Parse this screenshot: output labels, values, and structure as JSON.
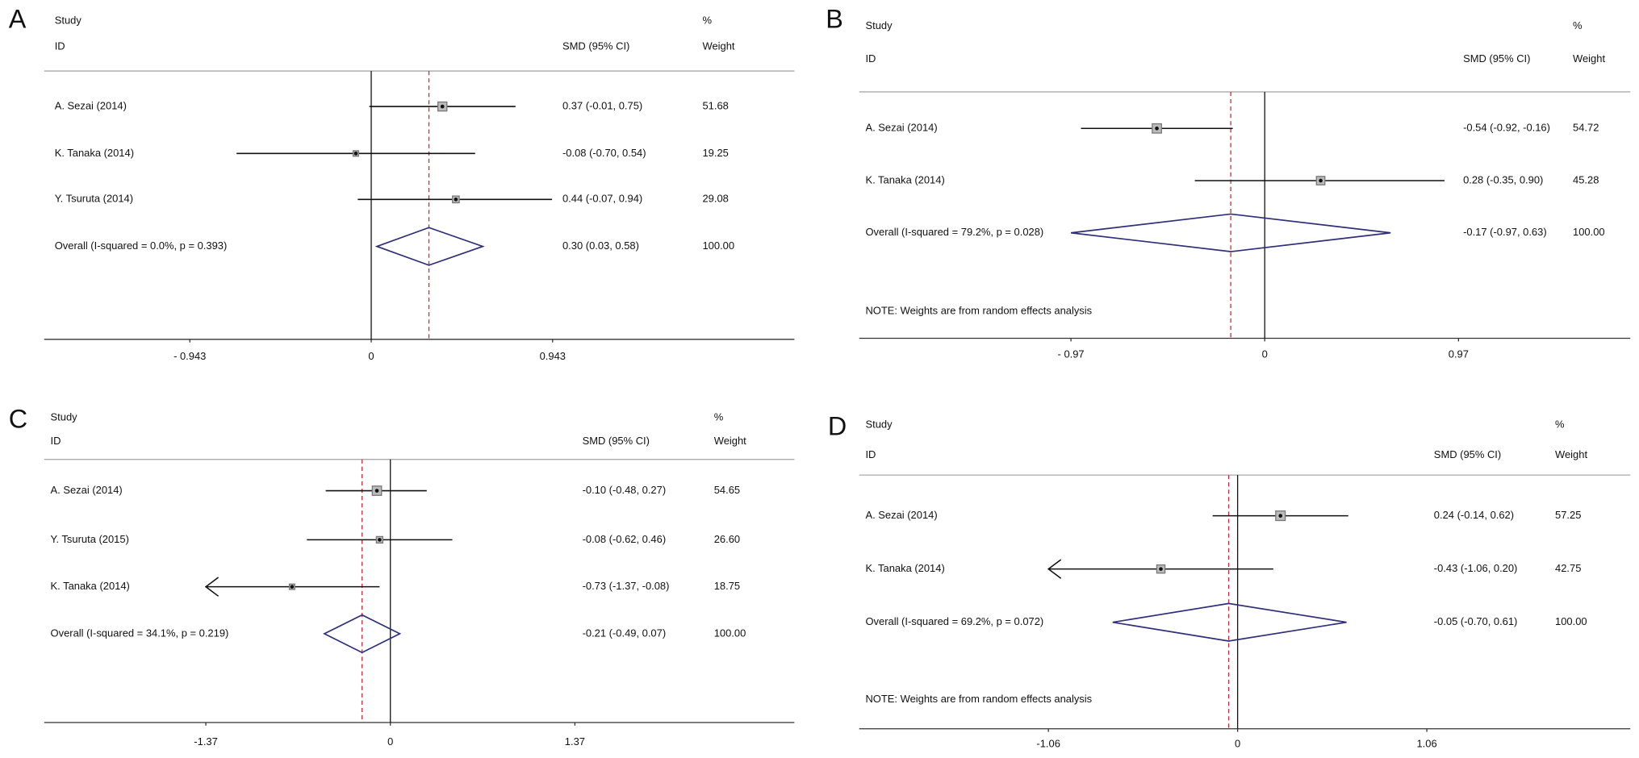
{
  "chart_data": [
    {
      "type": "forest",
      "panel_label": "A",
      "header": {
        "study": "Study",
        "id": "ID",
        "effect": "SMD (95% CI)",
        "percent": "%",
        "weight": "Weight"
      },
      "categories": [
        "A. Sezai (2014)",
        "K. Tanaka (2014)",
        "Y. Tsuruta (2014)"
      ],
      "values": [
        0.37,
        -0.08,
        0.44
      ],
      "lower": [
        -0.01,
        -0.7,
        -0.07
      ],
      "upper": [
        0.75,
        0.54,
        0.94
      ],
      "value_labels": [
        "0.37 (-0.01, 0.75)",
        "-0.08 (-0.70, 0.54)",
        "0.44 (-0.07, 0.94)"
      ],
      "weights": [
        51.68,
        19.25,
        29.08
      ],
      "weight_labels": [
        "51.68",
        "19.25",
        "29.08"
      ],
      "overall": {
        "label": "Overall  (I-squared = 0.0%, p = 0.393)",
        "value": 0.3,
        "lower": 0.03,
        "upper": 0.58,
        "value_label": "0.30 (0.03, 0.58)",
        "weight": 100,
        "weight_label": "100.00"
      },
      "xlim": [
        -1.7,
        2.2
      ],
      "xticks": [
        {
          "value": -0.943,
          "label": "- 0.943"
        },
        0,
        0.943
      ],
      "marker_color": "#777777",
      "diamond_color": "#2e2e7a",
      "overall_line_color": "#cc2a3a"
    },
    {
      "type": "forest",
      "panel_label": "B",
      "header": {
        "study": "Study",
        "id": "ID",
        "effect": "SMD (95% CI)",
        "percent": "%",
        "weight": "Weight"
      },
      "categories": [
        "A. Sezai (2014)",
        "K. Tanaka (2014)"
      ],
      "values": [
        -0.54,
        0.28
      ],
      "lower": [
        -0.92,
        -0.35
      ],
      "upper": [
        -0.16,
        0.9
      ],
      "value_labels": [
        "-0.54 (-0.92, -0.16)",
        "0.28 (-0.35, 0.90)"
      ],
      "weights": [
        54.72,
        45.28
      ],
      "weight_labels": [
        "54.72",
        "45.28"
      ],
      "overall": {
        "label": "Overall  (I-squared = 79.2%, p = 0.028)",
        "value": -0.17,
        "lower": -0.97,
        "upper": 0.63,
        "value_label": "-0.17 (-0.97, 0.63)",
        "weight": 100,
        "weight_label": "100.00"
      },
      "note": "NOTE: Weights are from random effects analysis",
      "xlim": [
        -2.03,
        1.83
      ],
      "xticks": [
        {
          "value": -0.97,
          "label": "- 0.97"
        },
        0,
        0.97
      ],
      "marker_color": "#777777",
      "diamond_color": "#2e2e7a",
      "overall_line_color": "#cc2a3a"
    },
    {
      "type": "forest",
      "panel_label": "C",
      "header": {
        "study": "Study",
        "id": "ID",
        "effect": "SMD (95% CI)",
        "percent": "%",
        "weight": "Weight"
      },
      "categories": [
        "A. Sezai (2014)",
        "Y. Tsuruta (2015)",
        "K. Tanaka (2014)"
      ],
      "values": [
        -0.1,
        -0.08,
        -0.73
      ],
      "lower": [
        -0.48,
        -0.62,
        -1.37
      ],
      "upper": [
        0.27,
        0.46,
        -0.08
      ],
      "value_labels": [
        "-0.10 (-0.48, 0.27)",
        "-0.08 (-0.62, 0.46)",
        "-0.73 (-1.37, -0.08)"
      ],
      "weights": [
        54.65,
        26.6,
        18.75
      ],
      "weight_labels": [
        "54.65",
        "26.60",
        "18.75"
      ],
      "overall": {
        "label": "Overall  (I-squared = 34.1%, p = 0.219)",
        "value": -0.21,
        "lower": -0.49,
        "upper": 0.07,
        "value_label": "-0.21 (-0.49, 0.07)",
        "weight": 100,
        "weight_label": "100.00"
      },
      "xlim": [
        -2.57,
        3.0
      ],
      "xticks": [
        -1.37,
        0,
        1.37
      ],
      "marker_color": "#777777",
      "diamond_color": "#2e2e7a",
      "overall_line_color": "#cc2a3a"
    },
    {
      "type": "forest",
      "panel_label": "D",
      "header": {
        "study": "Study",
        "id": "ID",
        "effect": "SMD (95% CI)",
        "percent": "%",
        "weight": "Weight"
      },
      "categories": [
        "A. Sezai (2014)",
        "K. Tanaka (2014)"
      ],
      "values": [
        0.24,
        -0.43
      ],
      "lower": [
        -0.14,
        -1.06
      ],
      "upper": [
        0.62,
        0.2
      ],
      "value_labels": [
        "0.24 (-0.14, 0.62)",
        "-0.43 (-1.06, 0.20)"
      ],
      "weights": [
        57.25,
        42.75
      ],
      "weight_labels": [
        "57.25",
        "42.75"
      ],
      "overall": {
        "label": "Overall  (I-squared = 69.2%, p = 0.072)",
        "value": -0.05,
        "lower": -0.7,
        "upper": 0.61,
        "value_label": "-0.05 (-0.70, 0.61)",
        "weight": 100,
        "weight_label": "100.00"
      },
      "note": "NOTE: Weights are from random effects analysis",
      "xlim": [
        -2.12,
        2.2
      ],
      "xticks": [
        -1.06,
        0,
        1.06
      ],
      "marker_color": "#777777",
      "diamond_color": "#2e2e7a",
      "overall_line_color": "#cc2a3a"
    }
  ]
}
